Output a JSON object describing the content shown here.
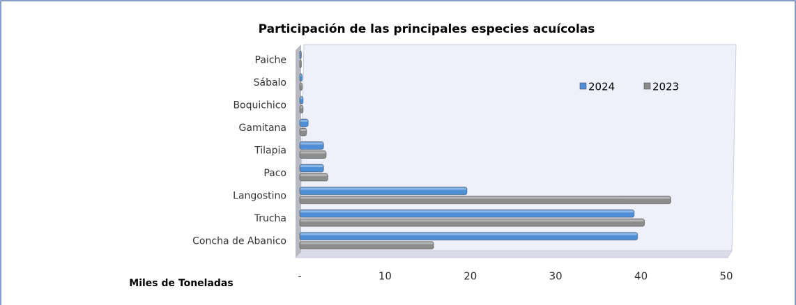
{
  "chart_data": {
    "type": "bar",
    "orientation": "horizontal",
    "title": "Participación de las principales especies acuícolas",
    "x_label": "Miles de Toneladas",
    "categories": [
      "Concha de Abanico",
      "Trucha",
      "Langostino",
      "Paco",
      "Tilapia",
      "Gamitana",
      "Boquichico",
      "Sábalo",
      "Paiche"
    ],
    "series": [
      {
        "name": "2024",
        "color": "#4f8fd8",
        "values": [
          39.6,
          39.2,
          19.6,
          2.8,
          2.8,
          1.0,
          0.4,
          0.3,
          0.2
        ]
      },
      {
        "name": "2023",
        "color": "#8c8c8c",
        "values": [
          15.7,
          40.4,
          43.5,
          3.3,
          3.1,
          0.8,
          0.4,
          0.3,
          0.2
        ]
      }
    ],
    "xlim": [
      0,
      50
    ],
    "xticks": [
      {
        "value": 0,
        "label": "-"
      },
      10,
      20,
      30,
      40,
      50
    ],
    "legend": "upper right",
    "grid": false
  }
}
